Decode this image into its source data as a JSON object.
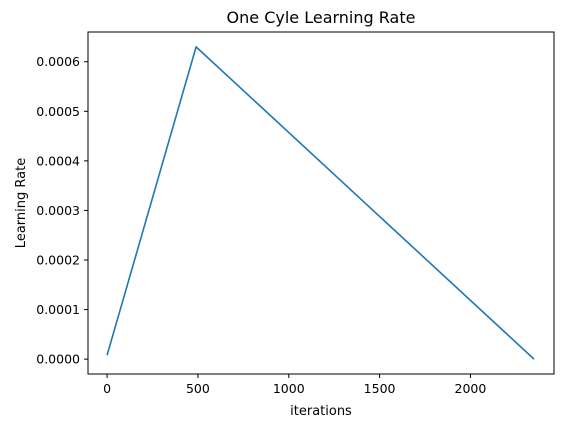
{
  "chart_data": {
    "type": "line",
    "title": "One Cyle Learning Rate",
    "xlabel": "iterations",
    "ylabel": "Learning Rate",
    "xlim": [
      -105,
      2460
    ],
    "ylim": [
      -3e-05,
      0.00066
    ],
    "xticks": [
      0,
      500,
      1000,
      1500,
      2000
    ],
    "xtick_labels": [
      "0",
      "500",
      "1000",
      "1500",
      "2000"
    ],
    "yticks": [
      0,
      0.0001,
      0.0002,
      0.0003,
      0.0004,
      0.0005,
      0.0006
    ],
    "ytick_labels": [
      "0.0000",
      "0.0001",
      "0.0002",
      "0.0003",
      "0.0004",
      "0.0005",
      "0.0006"
    ],
    "grid": false,
    "series": [
      {
        "color": "#1f77b4",
        "x": [
          0,
          490,
          2350
        ],
        "y": [
          8e-06,
          0.00063,
          0.0
        ]
      }
    ]
  }
}
